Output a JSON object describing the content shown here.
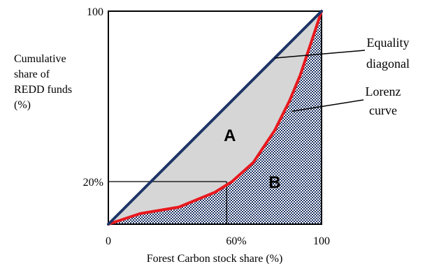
{
  "chart_data": {
    "type": "line",
    "xlabel": "Forest Carbon stock share (%)",
    "ylabel_lines": [
      "Cumulative",
      "share of",
      "REDD funds",
      "(%)"
    ],
    "xlim": [
      0,
      100
    ],
    "ylim": [
      0,
      100
    ],
    "x_ticks": [
      {
        "value": 0,
        "label": "0"
      },
      {
        "value": 60,
        "label": "60%"
      },
      {
        "value": 100,
        "label": "100"
      }
    ],
    "y_ticks": [
      {
        "value": 20,
        "label": "20%"
      },
      {
        "value": 100,
        "label": "100"
      }
    ],
    "series": [
      {
        "key": "equality",
        "x": [
          0,
          100
        ],
        "y": [
          0,
          100
        ],
        "color": "#1f3566"
      },
      {
        "key": "lorenz",
        "x": [
          0,
          15,
          33,
          50,
          58,
          68,
          78,
          85,
          90,
          100
        ],
        "y": [
          0,
          5,
          8,
          15,
          20,
          29,
          44,
          58,
          70,
          100
        ],
        "color": "#e8191e"
      }
    ],
    "reference": {
      "x": 55.5,
      "y": 20
    },
    "regions": [
      {
        "key": "area_A",
        "label": "A",
        "label_pos": [
          57,
          39
        ],
        "fill": "#d6d6d6"
      },
      {
        "key": "area_B",
        "label": "B",
        "label_pos": [
          78,
          17
        ],
        "fill": "#c9d1e3",
        "pattern": "checkered"
      }
    ],
    "annotations": [
      {
        "key": "equality_note",
        "lines": [
          "Equality",
          "diagonal"
        ],
        "target": [
          78,
          78
        ]
      },
      {
        "key": "lorenz_note",
        "lines": [
          "Lorenz",
          "curve"
        ],
        "target": [
          86,
          53
        ]
      }
    ]
  }
}
